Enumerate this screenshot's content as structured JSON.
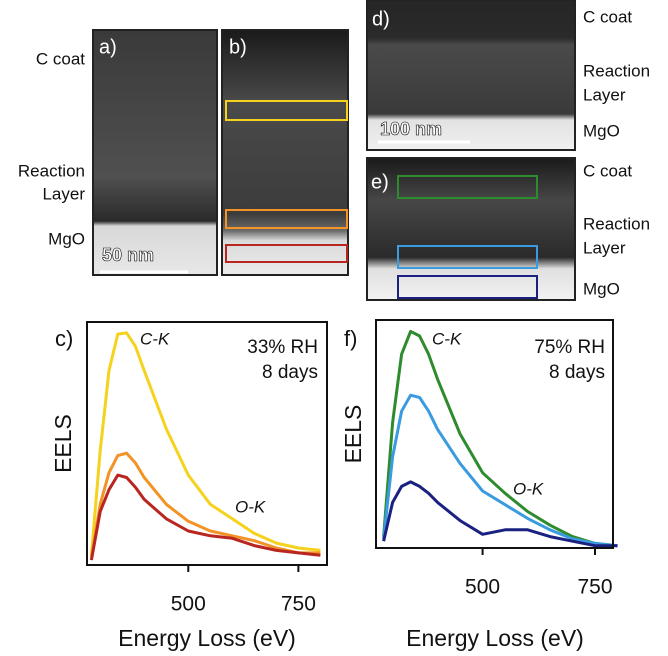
{
  "images": {
    "a": {
      "panel_label": "a)",
      "scale_bar": "50 nm"
    },
    "b": {
      "panel_label": "b)"
    },
    "d": {
      "panel_label": "d)",
      "scale_bar": "100 nm"
    },
    "e": {
      "panel_label": "e)"
    },
    "left_labels": [
      "C coat",
      "Reaction",
      "Layer",
      "MgO"
    ],
    "right_top_labels": [
      "C coat",
      "Reaction",
      "Layer",
      "MgO"
    ],
    "right_bottom_labels": [
      "C coat",
      "Reaction",
      "Layer",
      "MgO"
    ]
  },
  "chart_data": [
    {
      "type": "line",
      "panel_label": "c)",
      "y_label": "EELS",
      "x_label": "Energy Loss (eV)",
      "annotations": [
        "C-K",
        "O-K"
      ],
      "condition": [
        "33% RH",
        "8 days"
      ],
      "x": [
        280,
        300,
        320,
        340,
        360,
        380,
        400,
        450,
        500,
        550,
        600,
        650,
        700,
        750,
        800
      ],
      "series": [
        {
          "color": "#f5d21e",
          "values": [
            0.04,
            0.47,
            0.8,
            0.95,
            0.955,
            0.9,
            0.8,
            0.56,
            0.37,
            0.25,
            0.19,
            0.13,
            0.09,
            0.07,
            0.06
          ]
        },
        {
          "color": "#f39325",
          "values": [
            0.03,
            0.25,
            0.38,
            0.45,
            0.46,
            0.42,
            0.36,
            0.25,
            0.18,
            0.14,
            0.12,
            0.1,
            0.07,
            0.05,
            0.05
          ]
        },
        {
          "color": "#b8261f",
          "values": [
            0.02,
            0.22,
            0.31,
            0.37,
            0.36,
            0.32,
            0.27,
            0.19,
            0.14,
            0.12,
            0.11,
            0.08,
            0.06,
            0.05,
            0.04
          ]
        }
      ],
      "xlim": [
        270,
        815
      ],
      "xticks": [
        500,
        750
      ],
      "ylim": [
        0,
        1
      ]
    },
    {
      "type": "line",
      "panel_label": "f)",
      "y_label": "EELS",
      "x_label": "Energy Loss (eV)",
      "annotations": [
        "C-K",
        "O-K"
      ],
      "condition": [
        "75% RH",
        "8 days"
      ],
      "x": [
        280,
        300,
        320,
        340,
        360,
        380,
        400,
        450,
        500,
        550,
        600,
        650,
        700,
        750,
        800
      ],
      "series": [
        {
          "color": "#2e8b2e",
          "values": [
            0.05,
            0.55,
            0.85,
            0.95,
            0.93,
            0.85,
            0.74,
            0.5,
            0.33,
            0.24,
            0.16,
            0.1,
            0.05,
            0.02,
            0.01
          ]
        },
        {
          "color": "#3a9be0",
          "values": [
            0.04,
            0.4,
            0.6,
            0.67,
            0.66,
            0.6,
            0.52,
            0.37,
            0.25,
            0.19,
            0.13,
            0.08,
            0.04,
            0.02,
            0.01
          ]
        },
        {
          "color": "#1a2180",
          "values": [
            0.03,
            0.2,
            0.27,
            0.29,
            0.27,
            0.24,
            0.2,
            0.12,
            0.06,
            0.08,
            0.08,
            0.05,
            0.03,
            0.01,
            0.01
          ]
        }
      ],
      "xlim": [
        263,
        790
      ],
      "xticks": [
        500,
        750
      ],
      "ylim": [
        0,
        1
      ]
    }
  ]
}
